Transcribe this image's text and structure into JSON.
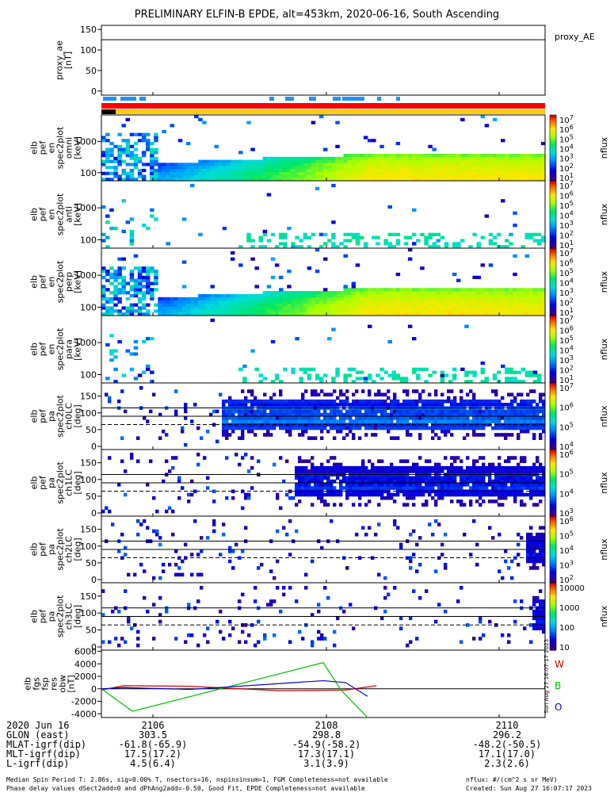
{
  "title": "PRELIMINARY ELFIN-B EPDE, alt=453km, 2020-06-16, South Ascending",
  "chart_data": [
    {
      "type": "line",
      "panel": "proxy_ae",
      "ylabel": "proxy_ae\n[nT]",
      "legend": "proxy_AE",
      "yticks": [
        "150",
        "100",
        "50",
        "0"
      ],
      "ylim": [
        -10,
        160
      ],
      "series": [
        {
          "name": "proxy_AE",
          "values": [
            125
          ]
        }
      ]
    },
    {
      "type": "heatmap",
      "panel": "elb_pef_en_spec2plot_omni",
      "ylabel": "elb\npef\nen\nspec2plot\nomni\n[keV]",
      "yticks": [
        "1000",
        "100"
      ],
      "colorbar_label": "nflux",
      "colorbar_ticks": [
        "10^7",
        "10^6",
        "10^5",
        "10^4",
        "10^3",
        "10^2",
        "10^1"
      ]
    },
    {
      "type": "heatmap",
      "panel": "elb_pef_en_spec2plot_anti",
      "ylabel": "elb\npef\nen\nspec2plot\nanti\n[keV]",
      "yticks": [
        "1000",
        "100"
      ],
      "colorbar_label": "nflux",
      "colorbar_ticks": [
        "10^7",
        "10^6",
        "10^5",
        "10^4",
        "10^3",
        "10^2",
        "10^1"
      ]
    },
    {
      "type": "heatmap",
      "panel": "elb_pef_en_spec2plot_perp",
      "ylabel": "elb\npef\nen\nspec2plot\nperp\n[keV]",
      "yticks": [
        "1000",
        "100"
      ],
      "colorbar_label": "nflux",
      "colorbar_ticks": [
        "10^7",
        "10^6",
        "10^5",
        "10^4",
        "10^3",
        "10^2",
        "10^1"
      ]
    },
    {
      "type": "heatmap",
      "panel": "elb_pef_en_spec2plot_para",
      "ylabel": "elb\npef\nen\nspec2plot\npara\n[keV]",
      "yticks": [
        "1000",
        "100"
      ],
      "colorbar_label": "nflux",
      "colorbar_ticks": [
        "10^7",
        "10^6",
        "10^5",
        "10^4",
        "10^3",
        "10^2",
        "10^1"
      ]
    },
    {
      "type": "heatmap",
      "panel": "elb_pef_pa_spec2plot_ch0LC",
      "ylabel": "elb\npef\npa\nspec2plot\nch0LC\n[deg]",
      "yticks": [
        "150",
        "100",
        "50",
        "0"
      ],
      "colorbar_label": "nflux",
      "colorbar_ticks": [
        "10^7",
        "10^6",
        "10^5",
        "10^4"
      ]
    },
    {
      "type": "heatmap",
      "panel": "elb_pef_pa_spec2plot_ch1LC",
      "ylabel": "elb\npef\npa\nspec2plot\nch1LC\n[deg]",
      "yticks": [
        "150",
        "100",
        "50",
        "0"
      ],
      "colorbar_label": "nflux",
      "colorbar_ticks": [
        "10^6",
        "10^5",
        "10^4",
        "10^3"
      ]
    },
    {
      "type": "heatmap",
      "panel": "elb_pef_pa_spec2plot_ch2LC",
      "ylabel": "elb\npef\npa\nspec2plot\nch2LC\n[deg]",
      "yticks": [
        "150",
        "100",
        "50",
        "0"
      ],
      "colorbar_label": "nflux",
      "colorbar_ticks": [
        "10^6",
        "10^5",
        "10^4",
        "10^3",
        "10^2"
      ]
    },
    {
      "type": "heatmap",
      "panel": "elb_pef_pa_spec2plot_ch3LC",
      "ylabel": "elb\npef\npa\nspec2plot\nch3LC\n[deg]",
      "yticks": [
        "150",
        "100",
        "50",
        "0"
      ],
      "colorbar_label": "nflux",
      "colorbar_ticks": [
        "10000",
        "1000",
        "100",
        "10"
      ]
    },
    {
      "type": "line",
      "panel": "elb_fgs_fsp_res_obw",
      "ylabel": "elb\nfgs\nfsp\nres\nobw\n[nT]",
      "yticks": [
        "6000",
        "4000",
        "2000",
        "0",
        "-2000",
        "-4000"
      ],
      "ylim": [
        -4600,
        6200
      ],
      "legend": [
        "W",
        "B",
        "O"
      ],
      "series": [
        {
          "name": "W",
          "color": "#d00000",
          "x": [
            0,
            0.05,
            0.2,
            0.4,
            0.55,
            0.62
          ],
          "values": [
            -200,
            500,
            400,
            -300,
            -200,
            500
          ]
        },
        {
          "name": "B",
          "color": "#00c000",
          "x": [
            0,
            0.07,
            0.5,
            0.54,
            0.6
          ],
          "values": [
            0,
            -3600,
            4200,
            -200,
            -4600
          ]
        },
        {
          "name": "O",
          "color": "#0000d0",
          "x": [
            0,
            0.05,
            0.2,
            0.5,
            0.55,
            0.6
          ],
          "values": [
            0,
            200,
            -100,
            1300,
            1000,
            -1200
          ]
        }
      ]
    }
  ],
  "footer": {
    "row_labels": [
      "2020 Jun 16",
      "GLON (east)",
      "MLAT-igrf(dip)",
      "MLT-igrf(dip)",
      "L-igrf(dip)"
    ],
    "col1": [
      "2106",
      "303.5",
      "-61.8(-65.9)",
      "17.5(17.2)",
      "4.5(6.4)"
    ],
    "col2": [
      "2108",
      "298.8",
      "-54.9(-58.2)",
      "17.3(17.1)",
      "3.1(3.9)"
    ],
    "col3": [
      "2110",
      "296.2",
      "-48.2(-50.5)",
      "17.1(17.0)",
      "2.3(2.6)"
    ],
    "note_line1": "Median Spin Period T: 2.86s, sig=0.00% T, nsectors=16, nspinsinsum=1, FGM Completeness=not available",
    "note_line2": "Phase delay values dSect2add=0 and dPhAng2add=-0.50, Good Fit, EPDE Completeness=not available",
    "unit_note": "nflux: #/(cm^2 s sr MeV)",
    "created": "Created: Sun Aug 27 16:07:17 2023",
    "side_stamp": "Sun Aug 27 16:07:17 2023"
  }
}
